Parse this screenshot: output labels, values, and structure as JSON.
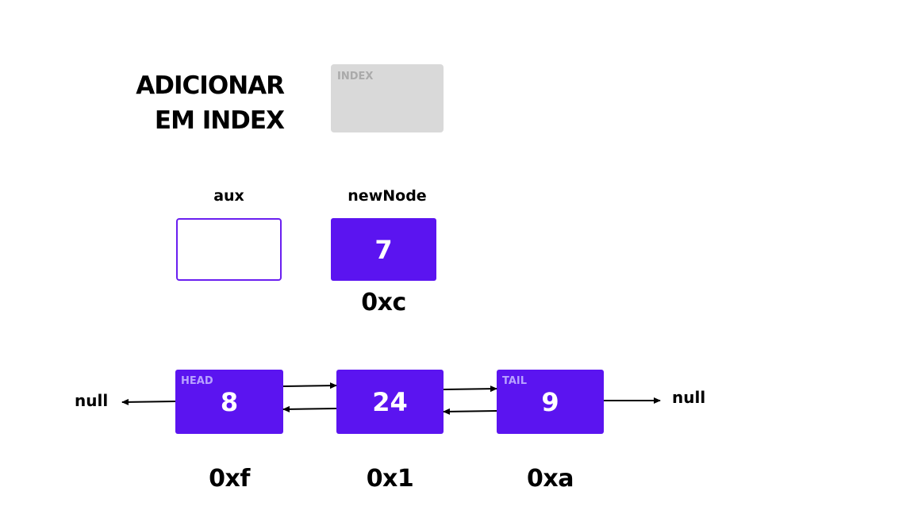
{
  "title": {
    "line1": "ADICIONAR",
    "line2": "EM INDEX"
  },
  "index_box": {
    "label": "INDEX"
  },
  "aux": {
    "label": "aux",
    "value": ""
  },
  "new_node": {
    "label": "newNode",
    "value": "7",
    "address": "0xc"
  },
  "list": {
    "null_left": "null",
    "null_right": "null",
    "nodes": [
      {
        "tag": "HEAD",
        "value": "8",
        "address": "0xf"
      },
      {
        "tag": "",
        "value": "24",
        "address": "0x1"
      },
      {
        "tag": "TAIL",
        "value": "9",
        "address": "0xa"
      }
    ]
  },
  "colors": {
    "node_fill": "#5b14f0",
    "aux_border": "#6a1ff0",
    "index_fill": "#d9d9d9"
  }
}
